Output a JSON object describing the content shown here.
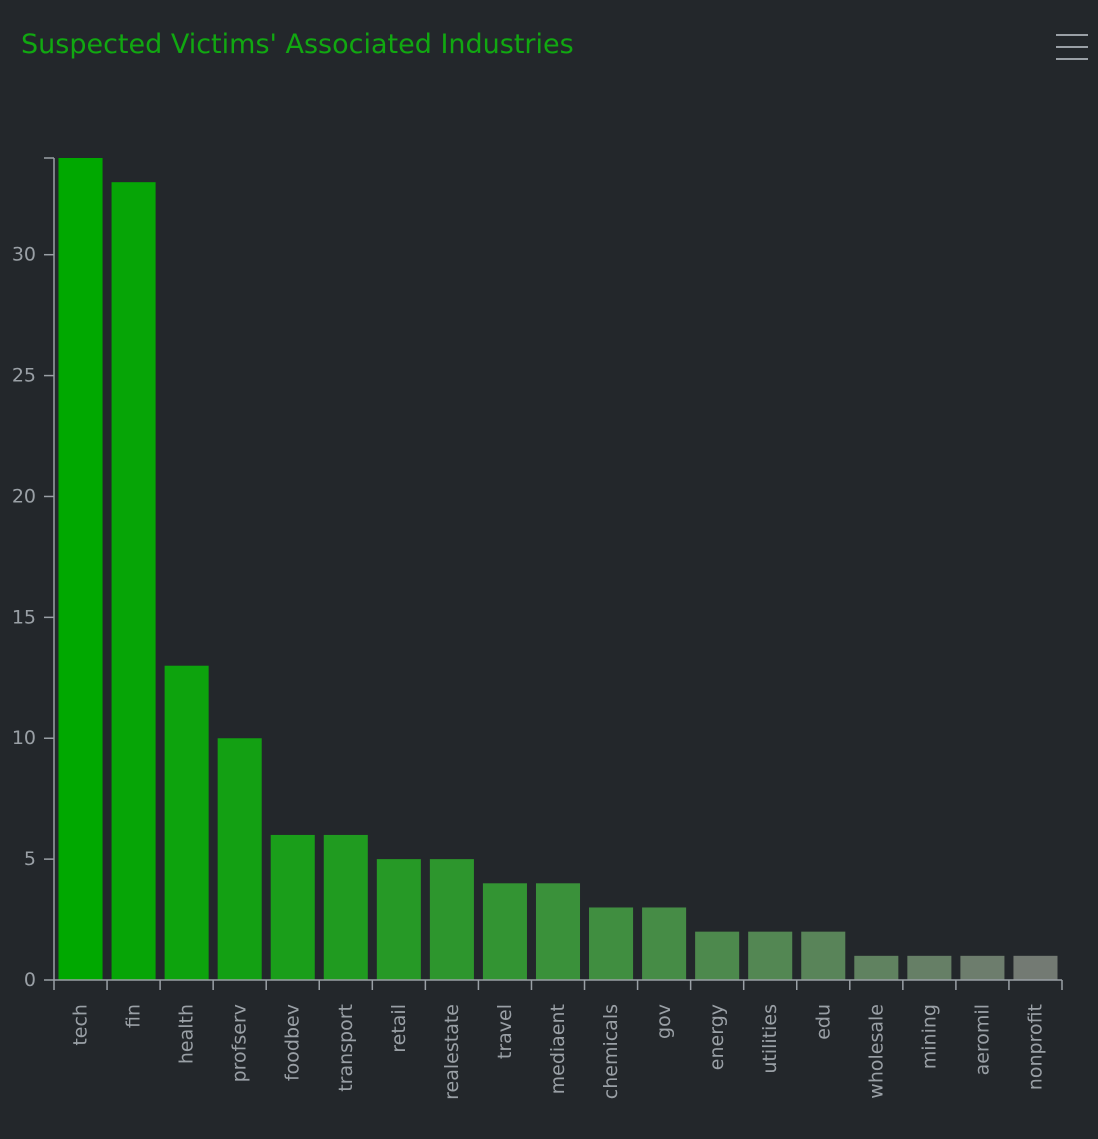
{
  "chart_data": {
    "type": "bar",
    "title": "Suspected Victims' Associated Industries",
    "xlabel": "",
    "ylabel": "",
    "categories": [
      "tech",
      "fin",
      "health",
      "profserv",
      "foodbev",
      "transport",
      "retail",
      "realestate",
      "travel",
      "mediaent",
      "chemicals",
      "gov",
      "energy",
      "utilities",
      "edu",
      "wholesale",
      "mining",
      "aeromil",
      "nonprofit"
    ],
    "values": [
      34,
      33,
      13,
      10,
      6,
      6,
      5,
      5,
      4,
      4,
      3,
      3,
      2,
      2,
      2,
      1,
      1,
      1,
      1
    ],
    "ylim": [
      0,
      34
    ],
    "yticks": [
      0,
      5,
      10,
      15,
      20,
      25,
      30
    ],
    "grid": false,
    "legend": "none",
    "colors": {
      "bar_start": "#00a800",
      "bar_end": "#737a73",
      "background": "#23272b",
      "title": "#11a811",
      "axis": "#9aa0a6"
    }
  },
  "toolbar": {
    "menu_icon": "hamburger-menu-icon"
  }
}
